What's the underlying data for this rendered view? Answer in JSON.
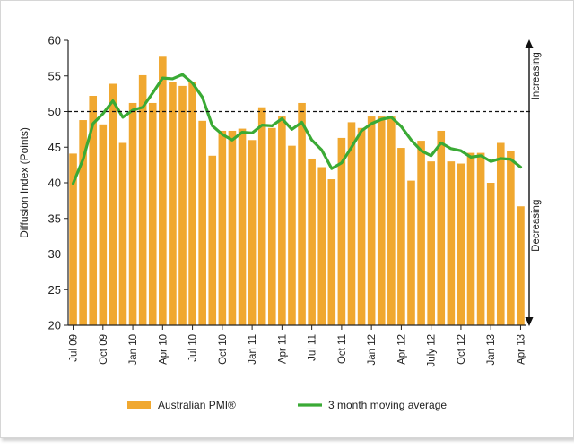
{
  "chart_data": {
    "type": "bar",
    "ylabel": "Diffusion Index (Points)",
    "ylim": [
      20,
      60
    ],
    "yticks": [
      20,
      25,
      30,
      35,
      40,
      45,
      50,
      55,
      60
    ],
    "reference_line": 50,
    "annotations": {
      "increasing": "Increasing",
      "decreasing": "Decreasing"
    },
    "x_tick_labels": [
      {
        "index": 0,
        "label": "Jul 09"
      },
      {
        "index": 3,
        "label": "Oct 09"
      },
      {
        "index": 6,
        "label": "Jan 10"
      },
      {
        "index": 9,
        "label": "Apr 10"
      },
      {
        "index": 12,
        "label": "Jul 10"
      },
      {
        "index": 15,
        "label": "Oct 10"
      },
      {
        "index": 18,
        "label": "Jan 11"
      },
      {
        "index": 21,
        "label": "Apr 11"
      },
      {
        "index": 24,
        "label": "Jul 11"
      },
      {
        "index": 27,
        "label": "Oct 11"
      },
      {
        "index": 30,
        "label": "Jan 12"
      },
      {
        "index": 33,
        "label": "Apr 12"
      },
      {
        "index": 36,
        "label": "July 12"
      },
      {
        "index": 39,
        "label": "Oct 12"
      },
      {
        "index": 42,
        "label": "Jan 13"
      },
      {
        "index": 45,
        "label": "Apr 13"
      }
    ],
    "series": [
      {
        "name": "Australian PMI®",
        "type": "bar",
        "color": "#f0a830",
        "values": [
          44.1,
          48.8,
          52.2,
          48.2,
          53.9,
          45.6,
          51.2,
          55.1,
          51.2,
          57.7,
          54.1,
          53.6,
          54.1,
          48.7,
          43.8,
          47.3,
          47.3,
          47.6,
          46.0,
          50.6,
          47.7,
          49.3,
          45.2,
          51.2,
          43.4,
          42.2,
          40.5,
          46.3,
          48.5,
          47.7,
          49.3,
          49.3,
          49.3,
          44.9,
          40.3,
          45.9,
          43.0,
          47.3,
          43.0,
          42.7,
          44.2,
          44.2,
          40.0,
          45.6,
          44.5,
          36.7
        ]
      },
      {
        "name": "3 month moving average",
        "type": "line",
        "color": "#3aaa35",
        "values": [
          39.9,
          43.3,
          48.3,
          49.7,
          51.5,
          49.2,
          50.2,
          50.6,
          52.6,
          54.7,
          54.6,
          55.2,
          54.0,
          52.0,
          48.0,
          46.8,
          46.0,
          47.1,
          47.0,
          48.1,
          48.0,
          49.0,
          47.5,
          48.5,
          46.0,
          44.6,
          42.0,
          42.8,
          45.0,
          47.3,
          48.3,
          48.9,
          49.2,
          47.9,
          46.0,
          44.5,
          43.8,
          45.6,
          44.8,
          44.5,
          43.6,
          43.8,
          43.0,
          43.4,
          43.3,
          42.2
        ]
      }
    ],
    "legend": {
      "placement": "bottom"
    }
  }
}
